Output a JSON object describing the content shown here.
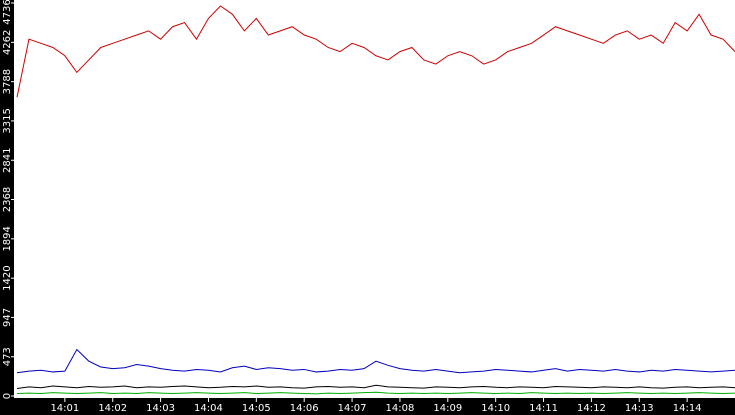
{
  "chart_data": {
    "type": "line",
    "xlim": [
      840,
      855
    ],
    "xticks": [
      {
        "value": 841,
        "label": "14:01"
      },
      {
        "value": 842,
        "label": "14:02"
      },
      {
        "value": 843,
        "label": "14:03"
      },
      {
        "value": 844,
        "label": "14:04"
      },
      {
        "value": 845,
        "label": "14:05"
      },
      {
        "value": 846,
        "label": "14:06"
      },
      {
        "value": 847,
        "label": "14:07"
      },
      {
        "value": 848,
        "label": "14:08"
      },
      {
        "value": 849,
        "label": "14:09"
      },
      {
        "value": 850,
        "label": "14:10"
      },
      {
        "value": 851,
        "label": "14:11"
      },
      {
        "value": 852,
        "label": "14:12"
      },
      {
        "value": 853,
        "label": "14:13"
      },
      {
        "value": 854,
        "label": "14:14"
      }
    ],
    "ylim": [
      0,
      4736
    ],
    "yticks": [
      0,
      473,
      947,
      1420,
      1894,
      2368,
      2841,
      3315,
      3788,
      4262,
      4736
    ],
    "x": [
      840,
      840.25,
      840.5,
      840.75,
      841,
      841.25,
      841.5,
      841.75,
      842,
      842.25,
      842.5,
      842.75,
      843,
      843.25,
      843.5,
      843.75,
      844,
      844.25,
      844.5,
      844.75,
      845,
      845.25,
      845.5,
      845.75,
      846,
      846.25,
      846.5,
      846.75,
      847,
      847.25,
      847.5,
      847.75,
      848,
      848.25,
      848.5,
      848.75,
      849,
      849.25,
      849.5,
      849.75,
      850,
      850.25,
      850.5,
      850.75,
      851,
      851.25,
      851.5,
      851.75,
      852,
      852.25,
      852.5,
      852.75,
      853,
      853.25,
      853.5,
      853.75,
      854,
      854.25,
      854.5,
      854.75,
      855
    ],
    "series": [
      {
        "color": "#d00000",
        "values": [
          3600,
          4300,
          4250,
          4200,
          4100,
          3900,
          4050,
          4200,
          4250,
          4300,
          4350,
          4400,
          4300,
          4450,
          4500,
          4300,
          4550,
          4700,
          4600,
          4400,
          4550,
          4350,
          4400,
          4450,
          4350,
          4300,
          4200,
          4150,
          4250,
          4200,
          4100,
          4050,
          4150,
          4200,
          4050,
          4000,
          4100,
          4150,
          4100,
          4000,
          4050,
          4150,
          4200,
          4250,
          4350,
          4450,
          4400,
          4350,
          4300,
          4250,
          4350,
          4400,
          4300,
          4350,
          4250,
          4500,
          4400,
          4600,
          4350,
          4300,
          4150
        ]
      },
      {
        "color": "#0000c0",
        "values": [
          280,
          300,
          310,
          290,
          300,
          560,
          420,
          350,
          330,
          340,
          380,
          360,
          330,
          310,
          300,
          320,
          310,
          290,
          340,
          360,
          320,
          340,
          330,
          310,
          320,
          290,
          300,
          320,
          310,
          330,
          420,
          370,
          330,
          310,
          300,
          320,
          300,
          280,
          290,
          300,
          320,
          310,
          300,
          290,
          310,
          330,
          300,
          320,
          310,
          300,
          320,
          300,
          290,
          310,
          300,
          320,
          310,
          300,
          290,
          300,
          310
        ]
      },
      {
        "color": "#000000",
        "values": [
          90,
          110,
          100,
          120,
          110,
          100,
          115,
          105,
          110,
          120,
          100,
          110,
          105,
          115,
          120,
          110,
          100,
          105,
          115,
          110,
          120,
          105,
          110,
          100,
          95,
          110,
          115,
          105,
          110,
          100,
          130,
          110,
          105,
          100,
          95,
          110,
          105,
          100,
          110,
          115,
          105,
          100,
          110,
          105,
          100,
          115,
          110,
          105,
          100,
          110,
          105,
          100,
          110,
          100,
          95,
          105,
          110,
          100,
          105,
          110,
          100
        ]
      },
      {
        "color": "#00b000",
        "values": [
          30,
          35,
          30,
          40,
          35,
          30,
          35,
          40,
          30,
          35,
          30,
          40,
          35,
          30,
          35,
          40,
          35,
          30,
          35,
          40,
          30,
          35,
          40,
          35,
          30,
          25,
          35,
          30,
          35,
          40,
          45,
          35,
          30,
          35,
          30,
          35,
          30,
          35,
          40,
          35,
          30,
          35,
          30,
          40,
          35,
          30,
          35,
          30,
          35,
          30,
          35,
          40,
          35,
          30,
          35,
          30,
          35,
          40,
          35,
          30,
          35
        ]
      }
    ]
  }
}
